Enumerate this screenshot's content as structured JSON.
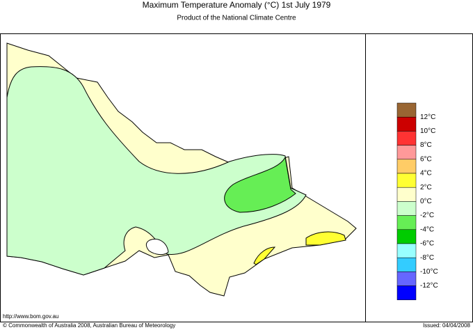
{
  "header": {
    "title": "Maximum Temperature Anomaly (°C)  1st July 1979",
    "subtitle": "Product of the National Climate Centre"
  },
  "legend": {
    "colors": [
      "#996633",
      "#cc0000",
      "#ff3333",
      "#ff9999",
      "#ffcc66",
      "#ffff33",
      "#ffffcc",
      "#ccffcc",
      "#66ee55",
      "#00cc00",
      "#99ffff",
      "#33ccff",
      "#6666ff",
      "#0000ff"
    ],
    "labels": [
      "12°C",
      "10°C",
      "8°C",
      "6°C",
      "4°C",
      "2°C",
      "0°C",
      "-2°C",
      "-4°C",
      "-6°C",
      "-8°C",
      "-10°C",
      "-12°C"
    ]
  },
  "footer": {
    "url": "http://www.bom.gov.au",
    "copyright": "© Commonwealth of Australia 2008, Australian Bureau of Meteorology",
    "issued": "Issued: 04/04/2008"
  }
}
